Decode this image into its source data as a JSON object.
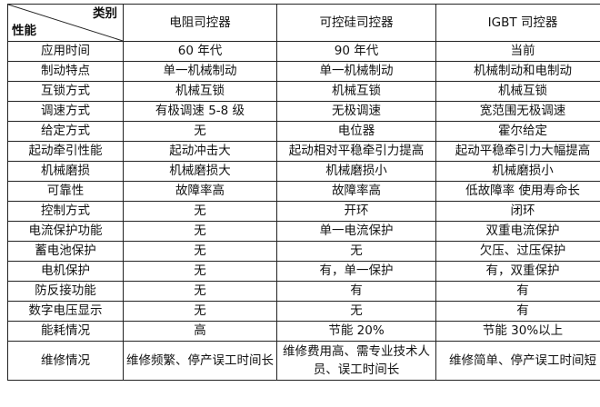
{
  "header": {
    "corner_top": "类别",
    "corner_bottom": "性能",
    "columns": [
      "电阻司控器",
      "可控硅司控器",
      "IGBT 司控器"
    ]
  },
  "rows": [
    {
      "label": "应用时间",
      "values": [
        "60 年代",
        "90 年代",
        "当前"
      ]
    },
    {
      "label": "制动特点",
      "values": [
        "单一机械制动",
        "单一机械制动",
        "机械制动和电制动"
      ]
    },
    {
      "label": "互锁方式",
      "values": [
        "机械互锁",
        "机械互锁",
        "机械互锁"
      ]
    },
    {
      "label": "调速方式",
      "values": [
        "有极调速 5-8 级",
        "无极调速",
        "宽范围无极调速"
      ]
    },
    {
      "label": "给定方式",
      "values": [
        "无",
        "电位器",
        "霍尔给定"
      ]
    },
    {
      "label": "起动牵引性能",
      "values": [
        "起动冲击大",
        "起动相对平稳牵引力提高",
        "起动平稳牵引力大幅提高"
      ]
    },
    {
      "label": "机械磨损",
      "values": [
        "机械磨损大",
        "机械磨损小",
        "机械磨损小"
      ]
    },
    {
      "label": "可靠性",
      "values": [
        "故障率高",
        "故障率高",
        "低故障率 使用寿命长"
      ]
    },
    {
      "label": "控制方式",
      "values": [
        "无",
        "开环",
        "闭环"
      ]
    },
    {
      "label": "电流保护功能",
      "values": [
        "无",
        "单一电流保护",
        "双重电流保护"
      ]
    },
    {
      "label": "蓄电池保护",
      "values": [
        "无",
        "无",
        "欠压、过压保护"
      ]
    },
    {
      "label": "电机保护",
      "values": [
        "无",
        "有，单一保护",
        "有，双重保护"
      ]
    },
    {
      "label": "防反接功能",
      "values": [
        "无",
        "有",
        "有"
      ]
    },
    {
      "label": "数字电压显示",
      "values": [
        "无",
        "无",
        "有"
      ]
    },
    {
      "label": "能耗情况",
      "values": [
        "高",
        "节能 20%",
        "节能 30%以上"
      ]
    },
    {
      "label": "维修情况",
      "values": [
        "维修频繁、停产误工时间长",
        "维修费用高、需专业技术人员、误工时间长",
        "维修简单、停产误工时间短"
      ]
    }
  ]
}
